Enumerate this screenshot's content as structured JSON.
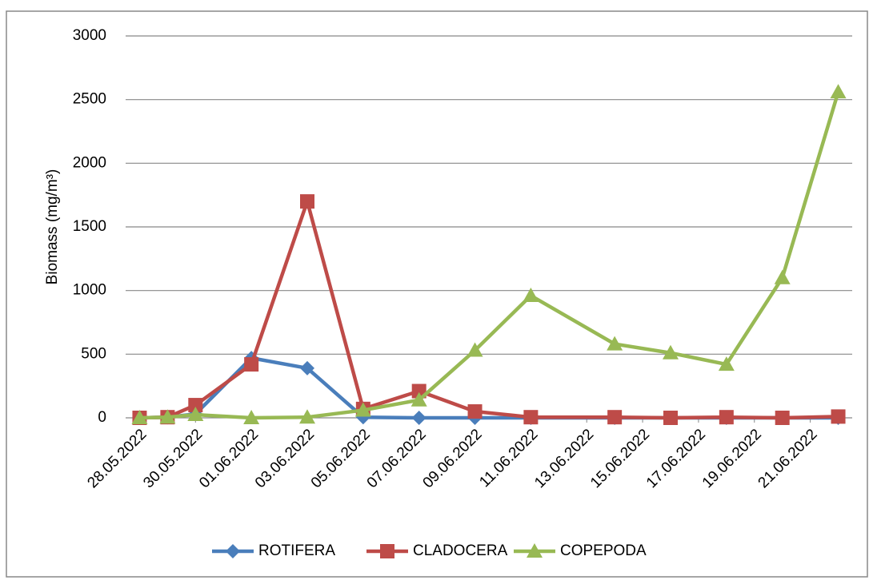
{
  "chart_data": {
    "type": "line",
    "y_label": "Biomass (mg/m³)",
    "x": [
      "28.05.2022",
      "29.05.2022",
      "30.05.2022",
      "01.06.2022",
      "03.06.2022",
      "05.06.2022",
      "07.06.2022",
      "09.06.2022",
      "11.06.2022",
      "14.06.2022",
      "16.06.2022",
      "18.06.2022",
      "20.06.2022",
      "22.06.2022"
    ],
    "xlim": [
      "28.05.2022",
      "22.06.2022"
    ],
    "xticks": [
      "28.05.2022",
      "30.05.2022",
      "01.06.2022",
      "03.06.2022",
      "05.06.2022",
      "07.06.2022",
      "09.06.2022",
      "11.06.2022",
      "13.06.2022",
      "15.06.2022",
      "17.06.2022",
      "19.06.2022",
      "21.06.2022"
    ],
    "ylim": [
      0,
      3000
    ],
    "yticks": [
      0,
      500,
      1000,
      1500,
      2000,
      2500,
      3000
    ],
    "grid": true,
    "legend": "bottom",
    "series": [
      {
        "name": "ROTIFERA",
        "color": "#4a7ebb",
        "marker": "diamond",
        "values": [
          0,
          5,
          30,
          470,
          390,
          5,
          0,
          0,
          0,
          0,
          0,
          0,
          0,
          0
        ]
      },
      {
        "name": "CLADOCERA",
        "color": "#be4b48",
        "marker": "square",
        "values": [
          0,
          5,
          100,
          420,
          1700,
          70,
          210,
          50,
          5,
          5,
          0,
          5,
          0,
          10
        ]
      },
      {
        "name": "COPEPODA",
        "color": "#98b954",
        "marker": "triangle",
        "values": [
          0,
          5,
          25,
          0,
          5,
          60,
          140,
          530,
          960,
          580,
          510,
          420,
          1100,
          2560
        ]
      }
    ]
  }
}
